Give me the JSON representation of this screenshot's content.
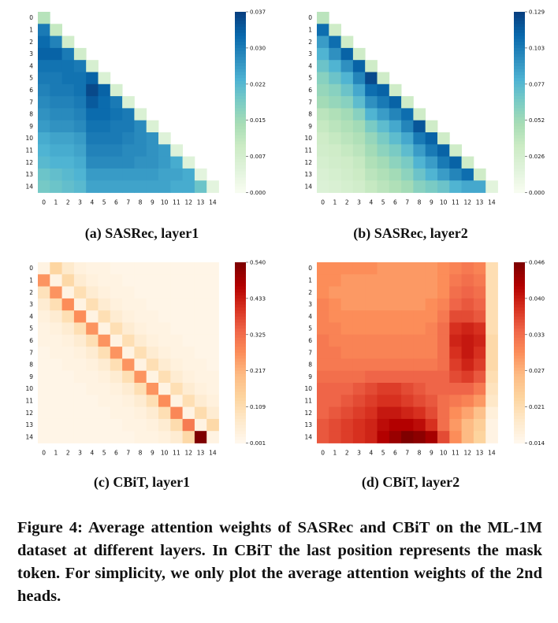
{
  "figure": {
    "caption": "Figure 4: Average attention weights of SASRec and CBiT on the ML-1M dataset at different layers. In CBiT the last position represents the mask token. For simplicity, we only plot the average attention weights of the 2nd heads."
  },
  "chart_data": [
    {
      "type": "heatmap",
      "caption": "(a) SASRec, layer1",
      "colormap": "GnBu",
      "triangular": "lower",
      "x_tick_labels": [
        "0",
        "1",
        "2",
        "3",
        "4",
        "5",
        "6",
        "7",
        "8",
        "9",
        "10",
        "11",
        "12",
        "13",
        "14"
      ],
      "y_tick_labels": [
        "0",
        "1",
        "2",
        "3",
        "4",
        "5",
        "6",
        "7",
        "8",
        "9",
        "10",
        "11",
        "12",
        "13",
        "14"
      ],
      "vmin": 0.0,
      "vmax": 0.037,
      "colorbar_ticks": [
        "0.037",
        "0.030",
        "0.022",
        "0.015",
        "0.007",
        "0.000"
      ],
      "values": [
        [
          0.012
        ],
        [
          0.03,
          0.01
        ],
        [
          0.032,
          0.029,
          0.008
        ],
        [
          0.033,
          0.033,
          0.03,
          0.008
        ],
        [
          0.031,
          0.031,
          0.031,
          0.03,
          0.007
        ],
        [
          0.03,
          0.03,
          0.031,
          0.031,
          0.033,
          0.006
        ],
        [
          0.029,
          0.03,
          0.03,
          0.031,
          0.036,
          0.033,
          0.007
        ],
        [
          0.028,
          0.029,
          0.029,
          0.03,
          0.034,
          0.032,
          0.03,
          0.006
        ],
        [
          0.027,
          0.028,
          0.028,
          0.029,
          0.032,
          0.032,
          0.031,
          0.03,
          0.006
        ],
        [
          0.026,
          0.027,
          0.027,
          0.028,
          0.031,
          0.031,
          0.03,
          0.03,
          0.028,
          0.006
        ],
        [
          0.024,
          0.025,
          0.025,
          0.026,
          0.03,
          0.03,
          0.03,
          0.029,
          0.028,
          0.027,
          0.005
        ],
        [
          0.023,
          0.024,
          0.024,
          0.025,
          0.029,
          0.029,
          0.029,
          0.028,
          0.028,
          0.027,
          0.026,
          0.005
        ],
        [
          0.022,
          0.023,
          0.023,
          0.024,
          0.028,
          0.028,
          0.028,
          0.028,
          0.027,
          0.027,
          0.026,
          0.024,
          0.005
        ],
        [
          0.02,
          0.021,
          0.022,
          0.023,
          0.026,
          0.026,
          0.026,
          0.026,
          0.026,
          0.026,
          0.025,
          0.025,
          0.024,
          0.004
        ],
        [
          0.019,
          0.02,
          0.021,
          0.022,
          0.025,
          0.025,
          0.025,
          0.025,
          0.025,
          0.025,
          0.025,
          0.024,
          0.024,
          0.02,
          0.004
        ]
      ]
    },
    {
      "type": "heatmap",
      "caption": "(b) SASRec, layer2",
      "colormap": "GnBu",
      "triangular": "lower",
      "x_tick_labels": [
        "0",
        "1",
        "2",
        "3",
        "4",
        "5",
        "6",
        "7",
        "8",
        "9",
        "10",
        "11",
        "12",
        "13",
        "14"
      ],
      "y_tick_labels": [
        "0",
        "1",
        "2",
        "3",
        "4",
        "5",
        "6",
        "7",
        "8",
        "9",
        "10",
        "11",
        "12",
        "13",
        "14"
      ],
      "vmin": 0.0,
      "vmax": 0.129,
      "colorbar_ticks": [
        "0.129",
        "0.103",
        "0.077",
        "0.052",
        "0.026",
        "0.000"
      ],
      "values": [
        [
          0.04
        ],
        [
          0.11,
          0.03
        ],
        [
          0.09,
          0.11,
          0.03
        ],
        [
          0.08,
          0.095,
          0.115,
          0.03
        ],
        [
          0.07,
          0.08,
          0.095,
          0.115,
          0.03
        ],
        [
          0.06,
          0.07,
          0.08,
          0.1,
          0.125,
          0.03
        ],
        [
          0.055,
          0.06,
          0.07,
          0.085,
          0.11,
          0.115,
          0.03
        ],
        [
          0.05,
          0.055,
          0.06,
          0.075,
          0.095,
          0.105,
          0.115,
          0.03
        ],
        [
          0.04,
          0.045,
          0.05,
          0.06,
          0.08,
          0.09,
          0.1,
          0.11,
          0.03
        ],
        [
          0.035,
          0.04,
          0.045,
          0.05,
          0.065,
          0.075,
          0.085,
          0.1,
          0.12,
          0.03
        ],
        [
          0.03,
          0.035,
          0.04,
          0.045,
          0.055,
          0.065,
          0.075,
          0.085,
          0.105,
          0.115,
          0.03
        ],
        [
          0.028,
          0.03,
          0.035,
          0.04,
          0.05,
          0.058,
          0.065,
          0.075,
          0.09,
          0.105,
          0.115,
          0.03
        ],
        [
          0.025,
          0.028,
          0.03,
          0.035,
          0.045,
          0.05,
          0.058,
          0.065,
          0.08,
          0.09,
          0.105,
          0.115,
          0.03
        ],
        [
          0.022,
          0.025,
          0.028,
          0.032,
          0.04,
          0.045,
          0.05,
          0.058,
          0.07,
          0.08,
          0.09,
          0.1,
          0.11,
          0.03
        ],
        [
          0.02,
          0.022,
          0.025,
          0.028,
          0.035,
          0.04,
          0.045,
          0.05,
          0.06,
          0.065,
          0.07,
          0.08,
          0.085,
          0.085,
          0.015
        ]
      ]
    },
    {
      "type": "heatmap",
      "caption": "(c) CBiT, layer1",
      "colormap": "OrRd",
      "x_tick_labels": [
        "0",
        "1",
        "2",
        "3",
        "4",
        "5",
        "6",
        "7",
        "8",
        "9",
        "10",
        "11",
        "12",
        "13",
        "14"
      ],
      "y_tick_labels": [
        "0",
        "1",
        "2",
        "3",
        "4",
        "5",
        "6",
        "7",
        "8",
        "9",
        "10",
        "11",
        "12",
        "13",
        "14"
      ],
      "vmin": 0.001,
      "vmax": 0.54,
      "colorbar_ticks": [
        "0.540",
        "0.433",
        "0.325",
        "0.217",
        "0.109",
        "0.001"
      ],
      "values": [
        [
          0.02,
          0.13,
          0.06,
          0.03,
          0.02,
          0.02,
          0.01,
          0.01,
          0.01,
          0.01,
          0.01,
          0.01,
          0.01,
          0.01,
          0.01
        ],
        [
          0.26,
          0.02,
          0.12,
          0.05,
          0.03,
          0.02,
          0.02,
          0.01,
          0.01,
          0.01,
          0.01,
          0.01,
          0.01,
          0.01,
          0.01
        ],
        [
          0.09,
          0.26,
          0.02,
          0.1,
          0.05,
          0.03,
          0.02,
          0.02,
          0.01,
          0.01,
          0.01,
          0.01,
          0.01,
          0.01,
          0.01
        ],
        [
          0.05,
          0.1,
          0.27,
          0.02,
          0.1,
          0.05,
          0.03,
          0.02,
          0.02,
          0.01,
          0.01,
          0.01,
          0.01,
          0.01,
          0.01
        ],
        [
          0.03,
          0.05,
          0.1,
          0.27,
          0.02,
          0.1,
          0.05,
          0.03,
          0.02,
          0.02,
          0.01,
          0.01,
          0.01,
          0.01,
          0.01
        ],
        [
          0.02,
          0.03,
          0.05,
          0.1,
          0.26,
          0.02,
          0.1,
          0.05,
          0.03,
          0.02,
          0.02,
          0.01,
          0.01,
          0.01,
          0.01
        ],
        [
          0.02,
          0.02,
          0.03,
          0.05,
          0.1,
          0.26,
          0.02,
          0.1,
          0.05,
          0.03,
          0.02,
          0.02,
          0.01,
          0.01,
          0.01
        ],
        [
          0.01,
          0.02,
          0.02,
          0.03,
          0.05,
          0.1,
          0.26,
          0.02,
          0.1,
          0.05,
          0.03,
          0.02,
          0.02,
          0.01,
          0.01
        ],
        [
          0.01,
          0.01,
          0.02,
          0.02,
          0.03,
          0.05,
          0.1,
          0.26,
          0.02,
          0.1,
          0.05,
          0.03,
          0.02,
          0.02,
          0.01
        ],
        [
          0.01,
          0.01,
          0.01,
          0.02,
          0.02,
          0.03,
          0.05,
          0.1,
          0.26,
          0.02,
          0.1,
          0.05,
          0.03,
          0.02,
          0.02
        ],
        [
          0.01,
          0.01,
          0.01,
          0.01,
          0.02,
          0.02,
          0.03,
          0.05,
          0.1,
          0.26,
          0.02,
          0.1,
          0.05,
          0.03,
          0.02
        ],
        [
          0.01,
          0.01,
          0.01,
          0.01,
          0.01,
          0.02,
          0.02,
          0.03,
          0.05,
          0.1,
          0.27,
          0.02,
          0.1,
          0.05,
          0.03
        ],
        [
          0.01,
          0.01,
          0.01,
          0.01,
          0.01,
          0.01,
          0.02,
          0.02,
          0.03,
          0.05,
          0.1,
          0.28,
          0.02,
          0.11,
          0.05
        ],
        [
          0.01,
          0.01,
          0.01,
          0.01,
          0.01,
          0.01,
          0.01,
          0.02,
          0.02,
          0.03,
          0.05,
          0.11,
          0.3,
          0.02,
          0.12
        ],
        [
          0.01,
          0.01,
          0.01,
          0.01,
          0.01,
          0.01,
          0.01,
          0.01,
          0.02,
          0.02,
          0.03,
          0.05,
          0.12,
          0.54,
          0.02
        ]
      ]
    },
    {
      "type": "heatmap",
      "caption": "(d) CBiT, layer2",
      "colormap": "OrRd",
      "x_tick_labels": [
        "0",
        "1",
        "2",
        "3",
        "4",
        "5",
        "6",
        "7",
        "8",
        "9",
        "10",
        "11",
        "12",
        "13",
        "14"
      ],
      "y_tick_labels": [
        "0",
        "1",
        "2",
        "3",
        "4",
        "5",
        "6",
        "7",
        "8",
        "9",
        "10",
        "11",
        "12",
        "13",
        "14"
      ],
      "vmin": 0.014,
      "vmax": 0.046,
      "colorbar_ticks": [
        "0.046",
        "0.040",
        "0.033",
        "0.027",
        "0.021",
        "0.014"
      ],
      "values": [
        [
          0.03,
          0.03,
          0.03,
          0.03,
          0.03,
          0.029,
          0.029,
          0.029,
          0.029,
          0.029,
          0.03,
          0.031,
          0.032,
          0.031,
          0.02
        ],
        [
          0.03,
          0.03,
          0.029,
          0.029,
          0.029,
          0.029,
          0.029,
          0.029,
          0.029,
          0.029,
          0.03,
          0.032,
          0.033,
          0.032,
          0.02
        ],
        [
          0.03,
          0.029,
          0.029,
          0.029,
          0.029,
          0.029,
          0.029,
          0.029,
          0.029,
          0.029,
          0.03,
          0.033,
          0.034,
          0.033,
          0.02
        ],
        [
          0.031,
          0.03,
          0.029,
          0.029,
          0.029,
          0.029,
          0.029,
          0.029,
          0.029,
          0.03,
          0.031,
          0.034,
          0.035,
          0.034,
          0.02
        ],
        [
          0.031,
          0.03,
          0.03,
          0.03,
          0.03,
          0.03,
          0.03,
          0.03,
          0.03,
          0.03,
          0.032,
          0.036,
          0.036,
          0.035,
          0.02
        ],
        [
          0.031,
          0.031,
          0.03,
          0.03,
          0.03,
          0.03,
          0.03,
          0.03,
          0.03,
          0.031,
          0.033,
          0.038,
          0.039,
          0.038,
          0.02
        ],
        [
          0.032,
          0.031,
          0.031,
          0.031,
          0.031,
          0.031,
          0.031,
          0.031,
          0.031,
          0.031,
          0.033,
          0.039,
          0.04,
          0.039,
          0.021
        ],
        [
          0.032,
          0.032,
          0.031,
          0.031,
          0.031,
          0.031,
          0.031,
          0.031,
          0.031,
          0.031,
          0.033,
          0.038,
          0.04,
          0.038,
          0.021
        ],
        [
          0.032,
          0.032,
          0.032,
          0.032,
          0.032,
          0.032,
          0.032,
          0.032,
          0.032,
          0.032,
          0.033,
          0.037,
          0.039,
          0.037,
          0.021
        ],
        [
          0.033,
          0.033,
          0.033,
          0.033,
          0.034,
          0.034,
          0.034,
          0.034,
          0.034,
          0.034,
          0.034,
          0.036,
          0.037,
          0.035,
          0.02
        ],
        [
          0.034,
          0.034,
          0.034,
          0.035,
          0.036,
          0.037,
          0.037,
          0.036,
          0.035,
          0.034,
          0.034,
          0.034,
          0.034,
          0.032,
          0.019
        ],
        [
          0.034,
          0.034,
          0.035,
          0.036,
          0.037,
          0.038,
          0.038,
          0.037,
          0.036,
          0.035,
          0.033,
          0.032,
          0.031,
          0.029,
          0.018
        ],
        [
          0.034,
          0.035,
          0.036,
          0.037,
          0.038,
          0.04,
          0.04,
          0.039,
          0.038,
          0.036,
          0.033,
          0.03,
          0.028,
          0.025,
          0.016
        ],
        [
          0.035,
          0.036,
          0.037,
          0.038,
          0.039,
          0.041,
          0.042,
          0.042,
          0.041,
          0.038,
          0.033,
          0.029,
          0.026,
          0.023,
          0.015
        ],
        [
          0.035,
          0.036,
          0.037,
          0.038,
          0.039,
          0.042,
          0.044,
          0.046,
          0.045,
          0.043,
          0.036,
          0.03,
          0.026,
          0.022,
          0.015
        ]
      ]
    }
  ]
}
